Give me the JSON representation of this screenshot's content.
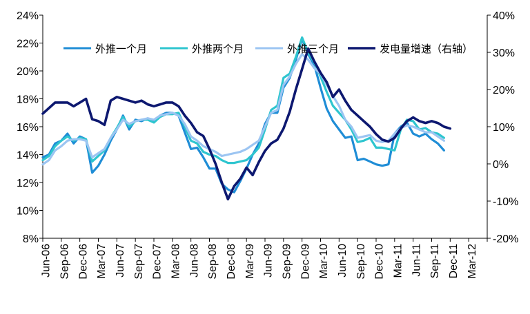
{
  "chart_data": {
    "type": "line",
    "title": "",
    "x_labels": [
      "Jun-06",
      "Sep-06",
      "Dec-06",
      "Mar-07",
      "Jun-07",
      "Sep-07",
      "Dec-07",
      "Mar-08",
      "Jun-08",
      "Sep-08",
      "Dec-08",
      "Mar-09",
      "Jun-09",
      "Sep-09",
      "Dec-09",
      "Mar-10",
      "Jun-10",
      "Sep-10",
      "Dec-10",
      "Mar-11",
      "Jun-11",
      "Sep-11",
      "Dec-11",
      "Mar-12"
    ],
    "y_left": {
      "min": 8,
      "max": 24,
      "step": 2,
      "labels": [
        "8%",
        "10%",
        "12%",
        "14%",
        "16%",
        "18%",
        "20%",
        "22%",
        "24%"
      ]
    },
    "y_right": {
      "min": -20,
      "max": 40,
      "step": 10,
      "labels": [
        "-20%",
        "-10%",
        "0%",
        "10%",
        "20%",
        "30%",
        "40%"
      ]
    },
    "legend_position": "top",
    "series": [
      {
        "name": "外推一个月",
        "axis": "left",
        "color": "#1f8dd6",
        "values": [
          13.8,
          14.0,
          14.8,
          15.0,
          15.5,
          14.8,
          15.3,
          15.1,
          12.7,
          13.2,
          14.0,
          15.0,
          15.8,
          16.8,
          15.8,
          16.5,
          16.4,
          16.6,
          16.4,
          16.8,
          17.0,
          17.0,
          16.8,
          15.6,
          14.4,
          14.5,
          13.8,
          13.0,
          13.0,
          11.9,
          11.5,
          11.3,
          12.1,
          13.0,
          14.0,
          14.8,
          16.2,
          17.0,
          17.0,
          18.8,
          19.5,
          20.8,
          22.3,
          21.2,
          20.4,
          18.8,
          17.3,
          16.4,
          15.8,
          15.2,
          15.3,
          13.6,
          13.7,
          13.5,
          13.3,
          13.2,
          13.3,
          15.5,
          16.0,
          16.3,
          15.5,
          15.3,
          15.5,
          15.1,
          14.8,
          14.3
        ]
      },
      {
        "name": "外推两个月",
        "axis": "left",
        "color": "#2ec5cf",
        "values": [
          13.6,
          13.9,
          14.6,
          15.0,
          15.3,
          15.0,
          15.2,
          15.1,
          13.5,
          13.9,
          14.3,
          15.2,
          15.9,
          16.7,
          16.0,
          16.4,
          16.5,
          16.5,
          16.3,
          16.7,
          16.9,
          16.9,
          17.0,
          16.0,
          15.0,
          14.8,
          14.2,
          14.0,
          13.9,
          13.6,
          13.4,
          13.4,
          13.5,
          13.6,
          14.0,
          14.5,
          15.8,
          17.2,
          17.5,
          19.5,
          19.8,
          21.0,
          22.4,
          21.3,
          20.6,
          19.6,
          18.5,
          17.5,
          17.0,
          16.5,
          15.8,
          14.9,
          15.0,
          15.2,
          14.5,
          14.5,
          14.4,
          14.3,
          15.8,
          16.5,
          16.4,
          15.8,
          15.9,
          15.6,
          15.5,
          15.2
        ]
      },
      {
        "name": "外推三个月",
        "axis": "left",
        "color": "#9cc5f2",
        "values": [
          13.3,
          13.6,
          14.3,
          14.6,
          15.0,
          15.1,
          15.1,
          15.0,
          13.8,
          14.1,
          14.4,
          15.2,
          15.8,
          16.5,
          16.2,
          16.4,
          16.5,
          16.6,
          16.5,
          16.8,
          16.9,
          17.0,
          16.8,
          16.2,
          15.3,
          15.0,
          14.6,
          14.4,
          14.2,
          13.9,
          14.0,
          14.1,
          14.2,
          14.4,
          14.7,
          15.0,
          16.0,
          17.0,
          17.2,
          19.0,
          19.6,
          20.5,
          21.2,
          20.8,
          20.2,
          19.8,
          19.0,
          18.2,
          17.5,
          16.5,
          16.0,
          15.2,
          15.3,
          15.4,
          15.0,
          14.9,
          15.0,
          15.5,
          15.9,
          16.1,
          16.0,
          15.8,
          15.6,
          15.6,
          15.3,
          15.0
        ]
      },
      {
        "name": "发电量增速（右轴）",
        "axis": "right",
        "color": "#0d1870",
        "values": [
          13.5,
          15.0,
          16.5,
          16.5,
          16.5,
          15.5,
          16.5,
          17.5,
          12.0,
          11.5,
          10.5,
          17.0,
          18.0,
          17.5,
          17.0,
          16.5,
          17.0,
          16.0,
          15.5,
          16.0,
          16.5,
          16.5,
          15.5,
          13.0,
          11.0,
          8.5,
          7.5,
          4.0,
          0.0,
          -5.0,
          -9.5,
          -6.0,
          -4.0,
          -1.0,
          -3.0,
          0.5,
          3.5,
          5.5,
          6.5,
          9.5,
          14.0,
          20.0,
          25.5,
          31.0,
          27.5,
          24.5,
          22.0,
          18.0,
          20.0,
          17.0,
          14.5,
          13.0,
          11.5,
          10.0,
          8.0,
          6.5,
          6.0,
          7.0,
          9.5,
          11.5,
          12.5,
          11.5,
          11.0,
          11.5,
          11.0,
          10.0,
          9.5
        ]
      }
    ]
  }
}
